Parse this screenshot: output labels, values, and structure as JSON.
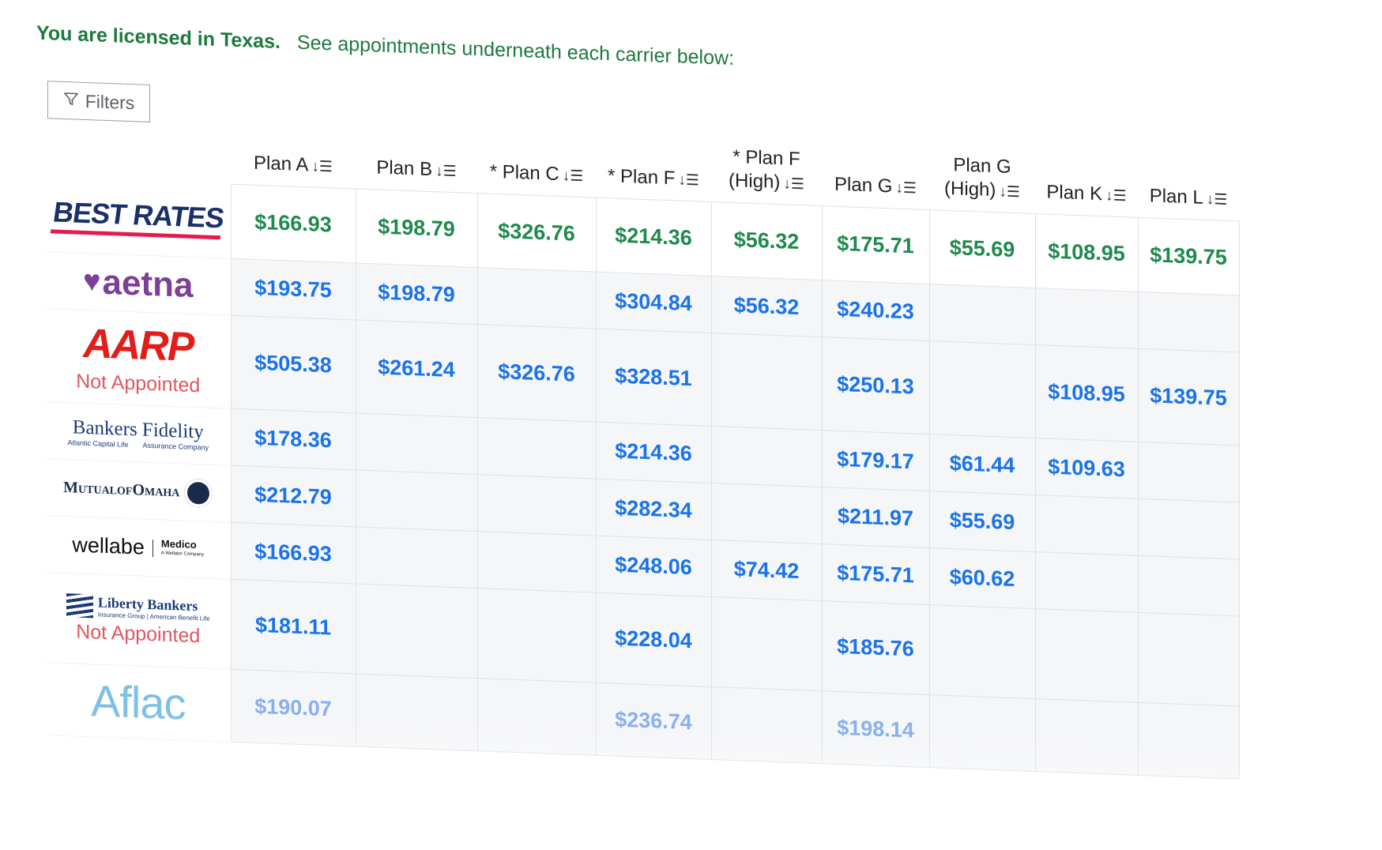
{
  "header": {
    "licensed_text": "You are licensed in Texas.",
    "instruction_text": "See appointments underneath each carrier below:"
  },
  "filters": {
    "label": "Filters",
    "icon": "filter-icon"
  },
  "plans": [
    {
      "line1": "Plan A",
      "line2": ""
    },
    {
      "line1": "Plan B",
      "line2": ""
    },
    {
      "line1": "* Plan C",
      "line2": ""
    },
    {
      "line1": "* Plan F",
      "line2": ""
    },
    {
      "line1": "* Plan F",
      "line2": "(High)"
    },
    {
      "line1": "Plan G",
      "line2": ""
    },
    {
      "line1": "Plan G",
      "line2": "(High)"
    },
    {
      "line1": "Plan K",
      "line2": ""
    },
    {
      "line1": "Plan L",
      "line2": ""
    }
  ],
  "sort_icon": "sort-descending-icon",
  "carriers": [
    {
      "id": "best-rates",
      "logo_text": "BEST RATES",
      "status": "",
      "highlight": true,
      "rates": [
        "$166.93",
        "$198.79",
        "$326.76",
        "$214.36",
        "$56.32",
        "$175.71",
        "$55.69",
        "$108.95",
        "$139.75"
      ]
    },
    {
      "id": "aetna",
      "logo_text": "aetna",
      "status": "",
      "rates": [
        "$193.75",
        "$198.79",
        "",
        "$304.84",
        "$56.32",
        "$240.23",
        "",
        "",
        ""
      ]
    },
    {
      "id": "aarp",
      "logo_text": "AARP",
      "status": "Not Appointed",
      "rates": [
        "$505.38",
        "$261.24",
        "$326.76",
        "$328.51",
        "",
        "$250.13",
        "",
        "$108.95",
        "$139.75"
      ]
    },
    {
      "id": "bankers-fidelity",
      "logo_text": "Bankers Fidelity",
      "logo_sub_left": "Atlantic Capital Life",
      "logo_sub_right": "Assurance Company",
      "status": "",
      "rates": [
        "$178.36",
        "",
        "",
        "$214.36",
        "",
        "$179.17",
        "$61.44",
        "$109.63",
        ""
      ]
    },
    {
      "id": "mutual-of-omaha",
      "logo_text": "MutualofOmaha",
      "status": "",
      "rates": [
        "$212.79",
        "",
        "",
        "$282.34",
        "",
        "$211.97",
        "$55.69",
        "",
        ""
      ]
    },
    {
      "id": "wellabe",
      "logo_text": "wellabe",
      "logo_partner": "Medico",
      "logo_partner_sub": "A Wellabe Company",
      "status": "",
      "rates": [
        "$166.93",
        "",
        "",
        "$248.06",
        "$74.42",
        "$175.71",
        "$60.62",
        "",
        ""
      ]
    },
    {
      "id": "liberty-bankers",
      "logo_text": "Liberty Bankers",
      "logo_sub": "Insurance Group | American Benefit Life",
      "status": "Not Appointed",
      "rates": [
        "$181.11",
        "",
        "",
        "$228.04",
        "",
        "$185.76",
        "",
        "",
        ""
      ]
    },
    {
      "id": "aflac",
      "logo_text": "Aflac",
      "status": "",
      "faded": true,
      "rates": [
        "$190.07",
        "",
        "",
        "$236.74",
        "",
        "$198.14",
        "",
        "",
        ""
      ]
    }
  ],
  "colors": {
    "green": "#1f8a4c",
    "headline_green": "#1c7a3e",
    "blue": "#1a73e8",
    "not_appointed": "#e25560",
    "aetna_purple": "#7d3f98",
    "aarp_red": "#e31d1a",
    "best_navy": "#1b2f6b"
  }
}
